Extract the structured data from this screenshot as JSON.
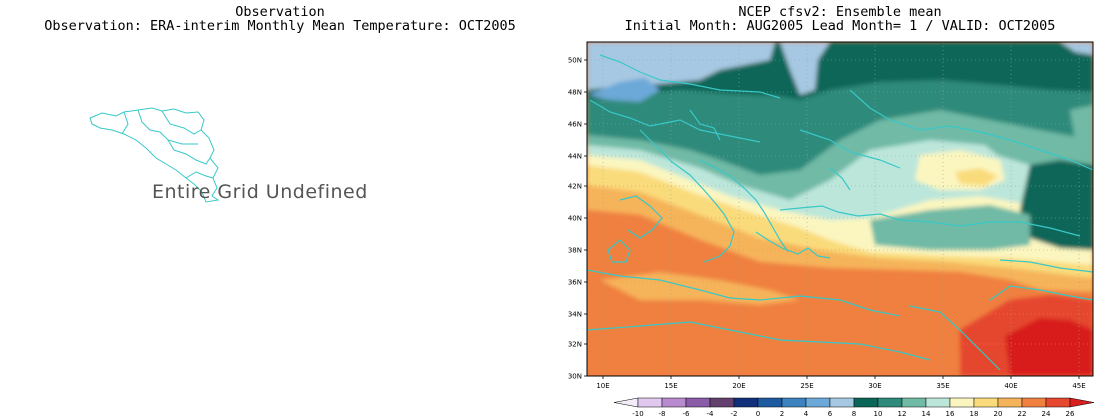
{
  "left_panel": {
    "title_line1": "Observation",
    "title_line2": "Observation: ERA-interim Monthly Mean Temperature: OCT2005",
    "message": "Entire Grid Undefined"
  },
  "right_panel": {
    "title_line1": "NCEP cfsv2: Ensemble mean",
    "title_line2": "Initial Month: AUG2005  Lead Month= 1 / VALID: OCT2005",
    "lat_ticks": [
      "50N",
      "48N",
      "46N",
      "44N",
      "42N",
      "40N",
      "38N",
      "36N",
      "34N",
      "32N",
      "30N"
    ],
    "lon_ticks": [
      "10E",
      "15E",
      "20E",
      "25E",
      "30E",
      "35E",
      "40E",
      "45E"
    ],
    "colorbar": {
      "levels": [
        "-10",
        "-8",
        "-6",
        "-4",
        "-2",
        "0",
        "2",
        "4",
        "6",
        "8",
        "10",
        "12",
        "14",
        "16",
        "18",
        "20",
        "22",
        "24",
        "26"
      ],
      "colors": [
        "#f4ecf8",
        "#e0c8ee",
        "#b88ad0",
        "#8a5ca8",
        "#64406e",
        "#12307a",
        "#1e5aa0",
        "#3c82be",
        "#6ca8d8",
        "#a6c8e2",
        "#0a6658",
        "#2e8a7a",
        "#70baa6",
        "#bce6da",
        "#fbf6c0",
        "#fadb7c",
        "#f6b45a",
        "#ef8040",
        "#e5472f",
        "#d81e1e"
      ]
    }
  }
}
